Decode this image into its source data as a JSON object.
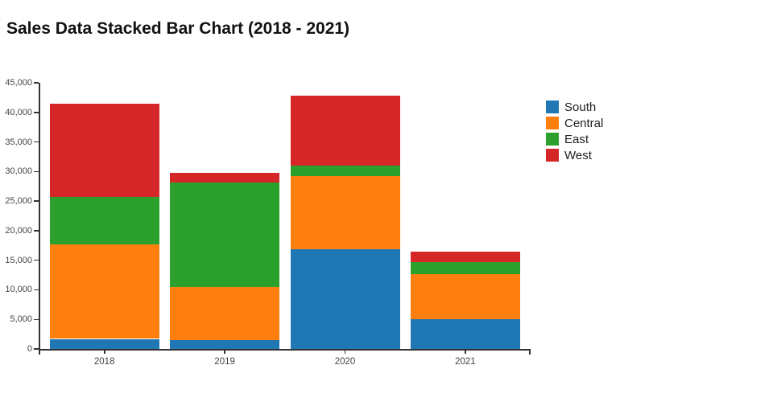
{
  "title": "Sales Data Stacked Bar Chart (2018 - 2021)",
  "chart_data": {
    "type": "bar",
    "stacked": true,
    "orientation": "vertical",
    "title": "Sales Data Stacked Bar Chart (2018 - 2021)",
    "categories": [
      "2018",
      "2019",
      "2020",
      "2021"
    ],
    "series": [
      {
        "name": "South",
        "color": "#1f77b4",
        "values": [
          1700,
          1500,
          16800,
          5000
        ]
      },
      {
        "name": "Central",
        "color": "#ff7f0e",
        "values": [
          16000,
          9000,
          12500,
          7600
        ]
      },
      {
        "name": "East",
        "color": "#2ca02c",
        "values": [
          8000,
          17600,
          1700,
          2100
        ]
      },
      {
        "name": "West",
        "color": "#d62728",
        "values": [
          15800,
          1700,
          11800,
          1700
        ]
      }
    ],
    "stack_totals": [
      41500,
      29800,
      42800,
      16400
    ],
    "xlabel": "",
    "ylabel": "",
    "ylim": [
      0,
      45000
    ],
    "ytick_step": 5000,
    "ytick_labels": [
      "0",
      "5,000",
      "10,000",
      "15,000",
      "20,000",
      "25,000",
      "30,000",
      "35,000",
      "40,000",
      "45,000"
    ],
    "grid": false,
    "legend_position": "right",
    "background_color": "#ffffff",
    "axis_color": "#333333",
    "tick_label_color": "#444444"
  }
}
